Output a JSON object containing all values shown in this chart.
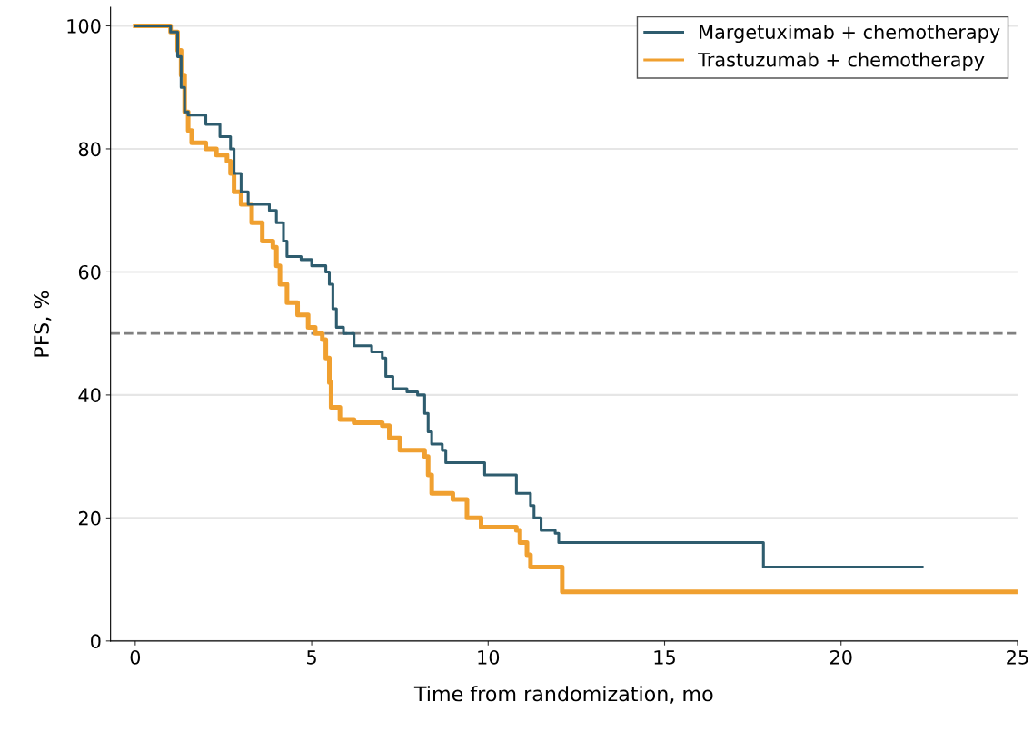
{
  "chart_data": {
    "type": "step",
    "xlabel": "Time from randomization, mo",
    "ylabel": "PFS, %",
    "xlim": [
      -0.7,
      25
    ],
    "ylim": [
      0,
      103
    ],
    "xticks": [
      0,
      5,
      10,
      15,
      20,
      25
    ],
    "yticks": [
      0,
      20,
      40,
      60,
      80,
      100
    ],
    "grid": "y",
    "legend": "top right",
    "line_style": "solid",
    "ref_lines": [
      {
        "axis": "y",
        "value": 50,
        "color": "#808080",
        "line_style": "dashed"
      }
    ],
    "series": [
      {
        "name": "Margetuximab + chemotherapy",
        "color": "#2e5c6e",
        "x": [
          0,
          0.9,
          1.0,
          1.2,
          1.3,
          1.4,
          1.5,
          2.0,
          2.4,
          2.7,
          2.8,
          3.0,
          3.2,
          3.8,
          4.0,
          4.2,
          4.3,
          4.7,
          5.0,
          5.4,
          5.5,
          5.6,
          5.7,
          5.9,
          6.2,
          6.7,
          7.0,
          7.1,
          7.3,
          7.7,
          8.0,
          8.2,
          8.3,
          8.4,
          8.7,
          8.8,
          9.7,
          9.9,
          10.6,
          10.8,
          11.2,
          11.3,
          11.5,
          11.9,
          12.0,
          17.8,
          22.3
        ],
        "values": [
          100,
          100,
          99,
          95,
          90,
          86,
          85.5,
          84,
          82,
          80,
          76,
          73,
          71,
          70,
          68,
          65,
          62.5,
          62,
          61,
          60,
          58,
          54,
          51,
          50,
          48,
          47,
          46,
          43,
          41,
          40.5,
          40,
          37,
          34,
          32,
          31,
          29,
          29,
          27,
          27,
          24,
          22,
          20,
          18,
          17.5,
          16,
          12,
          12
        ]
      },
      {
        "name": "Trastuzumab + chemotherapy",
        "color": "#f0a030",
        "x": [
          0,
          1.0,
          1.2,
          1.3,
          1.4,
          1.5,
          1.6,
          2.0,
          2.3,
          2.6,
          2.7,
          2.8,
          3.0,
          3.3,
          3.6,
          3.9,
          4.0,
          4.1,
          4.3,
          4.6,
          4.9,
          5.1,
          5.3,
          5.4,
          5.5,
          5.55,
          5.8,
          6.2,
          7.0,
          7.2,
          7.5,
          8.2,
          8.3,
          8.4,
          9.0,
          9.4,
          9.8,
          10.8,
          10.9,
          11.1,
          11.2,
          12.1,
          25
        ],
        "values": [
          100,
          99,
          96,
          92,
          86,
          83,
          81,
          80,
          79,
          78,
          76,
          73,
          71,
          68,
          65,
          64,
          61,
          58,
          55,
          53,
          51,
          50,
          49,
          46,
          42,
          38,
          36,
          35.5,
          35,
          33,
          31,
          30,
          27,
          24,
          23,
          20,
          18.5,
          18,
          16,
          14,
          12,
          8,
          8
        ]
      }
    ]
  }
}
